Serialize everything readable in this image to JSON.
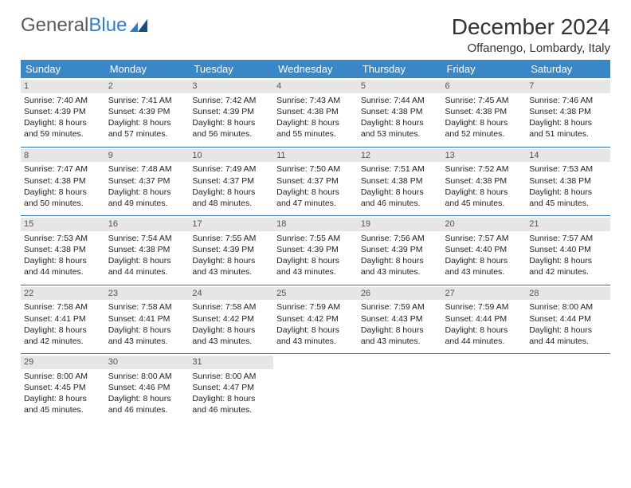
{
  "logo": {
    "text1": "General",
    "text2": "Blue"
  },
  "title": "December 2024",
  "location": "Offanengo, Lombardy, Italy",
  "colors": {
    "header_bg": "#3a87c8",
    "header_text": "#ffffff",
    "daynum_bg": "#e6e6e6",
    "daynum_text": "#555555",
    "row_sep": "#2f6fa8",
    "body_text": "#222222",
    "logo_gray": "#5a5a5a",
    "logo_blue": "#2f7fc2",
    "page_bg": "#ffffff"
  },
  "weekdays": [
    "Sunday",
    "Monday",
    "Tuesday",
    "Wednesday",
    "Thursday",
    "Friday",
    "Saturday"
  ],
  "weeks": [
    [
      {
        "d": "1",
        "sr": "7:40 AM",
        "ss": "4:39 PM",
        "dl": "8 hours and 59 minutes."
      },
      {
        "d": "2",
        "sr": "7:41 AM",
        "ss": "4:39 PM",
        "dl": "8 hours and 57 minutes."
      },
      {
        "d": "3",
        "sr": "7:42 AM",
        "ss": "4:39 PM",
        "dl": "8 hours and 56 minutes."
      },
      {
        "d": "4",
        "sr": "7:43 AM",
        "ss": "4:38 PM",
        "dl": "8 hours and 55 minutes."
      },
      {
        "d": "5",
        "sr": "7:44 AM",
        "ss": "4:38 PM",
        "dl": "8 hours and 53 minutes."
      },
      {
        "d": "6",
        "sr": "7:45 AM",
        "ss": "4:38 PM",
        "dl": "8 hours and 52 minutes."
      },
      {
        "d": "7",
        "sr": "7:46 AM",
        "ss": "4:38 PM",
        "dl": "8 hours and 51 minutes."
      }
    ],
    [
      {
        "d": "8",
        "sr": "7:47 AM",
        "ss": "4:38 PM",
        "dl": "8 hours and 50 minutes."
      },
      {
        "d": "9",
        "sr": "7:48 AM",
        "ss": "4:37 PM",
        "dl": "8 hours and 49 minutes."
      },
      {
        "d": "10",
        "sr": "7:49 AM",
        "ss": "4:37 PM",
        "dl": "8 hours and 48 minutes."
      },
      {
        "d": "11",
        "sr": "7:50 AM",
        "ss": "4:37 PM",
        "dl": "8 hours and 47 minutes."
      },
      {
        "d": "12",
        "sr": "7:51 AM",
        "ss": "4:38 PM",
        "dl": "8 hours and 46 minutes."
      },
      {
        "d": "13",
        "sr": "7:52 AM",
        "ss": "4:38 PM",
        "dl": "8 hours and 45 minutes."
      },
      {
        "d": "14",
        "sr": "7:53 AM",
        "ss": "4:38 PM",
        "dl": "8 hours and 45 minutes."
      }
    ],
    [
      {
        "d": "15",
        "sr": "7:53 AM",
        "ss": "4:38 PM",
        "dl": "8 hours and 44 minutes."
      },
      {
        "d": "16",
        "sr": "7:54 AM",
        "ss": "4:38 PM",
        "dl": "8 hours and 44 minutes."
      },
      {
        "d": "17",
        "sr": "7:55 AM",
        "ss": "4:39 PM",
        "dl": "8 hours and 43 minutes."
      },
      {
        "d": "18",
        "sr": "7:55 AM",
        "ss": "4:39 PM",
        "dl": "8 hours and 43 minutes."
      },
      {
        "d": "19",
        "sr": "7:56 AM",
        "ss": "4:39 PM",
        "dl": "8 hours and 43 minutes."
      },
      {
        "d": "20",
        "sr": "7:57 AM",
        "ss": "4:40 PM",
        "dl": "8 hours and 43 minutes."
      },
      {
        "d": "21",
        "sr": "7:57 AM",
        "ss": "4:40 PM",
        "dl": "8 hours and 42 minutes."
      }
    ],
    [
      {
        "d": "22",
        "sr": "7:58 AM",
        "ss": "4:41 PM",
        "dl": "8 hours and 42 minutes."
      },
      {
        "d": "23",
        "sr": "7:58 AM",
        "ss": "4:41 PM",
        "dl": "8 hours and 43 minutes."
      },
      {
        "d": "24",
        "sr": "7:58 AM",
        "ss": "4:42 PM",
        "dl": "8 hours and 43 minutes."
      },
      {
        "d": "25",
        "sr": "7:59 AM",
        "ss": "4:42 PM",
        "dl": "8 hours and 43 minutes."
      },
      {
        "d": "26",
        "sr": "7:59 AM",
        "ss": "4:43 PM",
        "dl": "8 hours and 43 minutes."
      },
      {
        "d": "27",
        "sr": "7:59 AM",
        "ss": "4:44 PM",
        "dl": "8 hours and 44 minutes."
      },
      {
        "d": "28",
        "sr": "8:00 AM",
        "ss": "4:44 PM",
        "dl": "8 hours and 44 minutes."
      }
    ],
    [
      {
        "d": "29",
        "sr": "8:00 AM",
        "ss": "4:45 PM",
        "dl": "8 hours and 45 minutes."
      },
      {
        "d": "30",
        "sr": "8:00 AM",
        "ss": "4:46 PM",
        "dl": "8 hours and 46 minutes."
      },
      {
        "d": "31",
        "sr": "8:00 AM",
        "ss": "4:47 PM",
        "dl": "8 hours and 46 minutes."
      },
      null,
      null,
      null,
      null
    ]
  ],
  "labels": {
    "sunrise": "Sunrise: ",
    "sunset": "Sunset: ",
    "daylight": "Daylight: "
  }
}
